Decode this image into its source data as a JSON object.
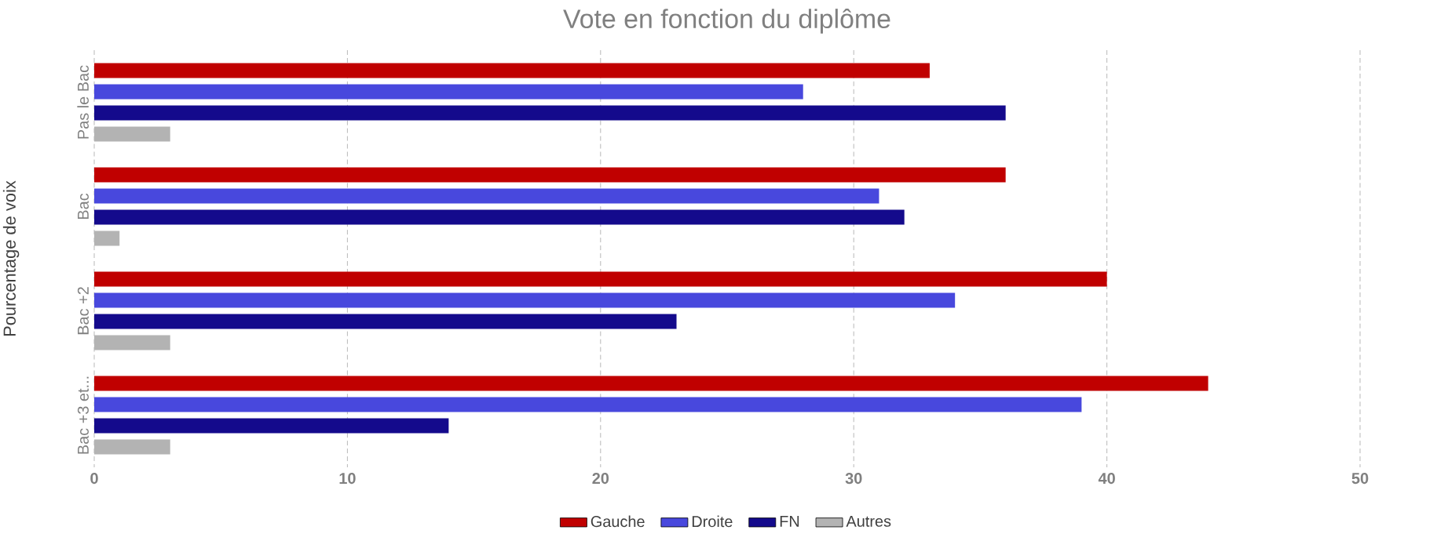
{
  "chart_data": {
    "type": "bar",
    "orientation": "horizontal",
    "title": "Vote en fonction du diplôme",
    "ylabel": "Pourcentage de voix",
    "categories": [
      "Pas le Bac",
      "Bac",
      "Bac +2",
      "Bac +3 et..."
    ],
    "series": [
      {
        "name": "Gauche",
        "color": "#c00000",
        "values": [
          33,
          36,
          40,
          44
        ]
      },
      {
        "name": "Droite",
        "color": "#4848dd",
        "values": [
          28,
          31,
          34,
          39
        ]
      },
      {
        "name": "FN",
        "color": "#140a8c",
        "values": [
          36,
          32,
          23,
          14
        ]
      },
      {
        "name": "Autres",
        "color": "#b3b3b3",
        "values": [
          3,
          1,
          3,
          3
        ]
      }
    ],
    "xlim": [
      0,
      50
    ],
    "xticks": [
      0,
      10,
      20,
      30,
      40,
      50
    ],
    "grid": "x",
    "legend": "bottom"
  }
}
